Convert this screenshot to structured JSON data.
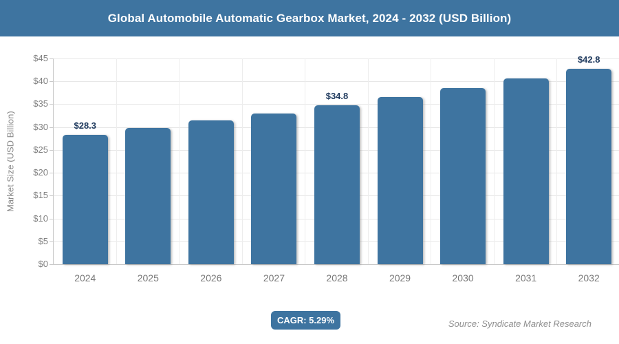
{
  "header": {
    "title": "Global Automobile Automatic Gearbox Market, 2024 - 2032 (USD Billion)"
  },
  "colors": {
    "accent": "#3e74a0",
    "gridline": "#e7e7e7",
    "axis": "#c9c9c9",
    "tick_text": "#808080",
    "value_label_text": "#1f3a5e",
    "source_text": "#8f8f8f"
  },
  "chart_data": {
    "type": "bar",
    "title": "Global Automobile Automatic Gearbox Market, 2024 - 2032 (USD Billion)",
    "categories": [
      "2024",
      "2025",
      "2026",
      "2027",
      "2028",
      "2029",
      "2030",
      "2031",
      "2032"
    ],
    "values": [
      28.3,
      29.8,
      31.4,
      33.0,
      34.8,
      36.6,
      38.6,
      40.6,
      42.8
    ],
    "data_labels": [
      "$28.3",
      null,
      null,
      null,
      "$34.8",
      null,
      null,
      null,
      "$42.8"
    ],
    "xlabel": "",
    "ylabel": "Market Size (USD Billion)",
    "ylim": [
      0,
      45
    ],
    "ytick_step": 5,
    "ytick_prefix": "$",
    "grid": true,
    "legend_position": "none",
    "bar_color": "#3e74a0"
  },
  "footer": {
    "cagr_label": "CAGR: 5.29%",
    "source": "Source: Syndicate Market Research"
  }
}
